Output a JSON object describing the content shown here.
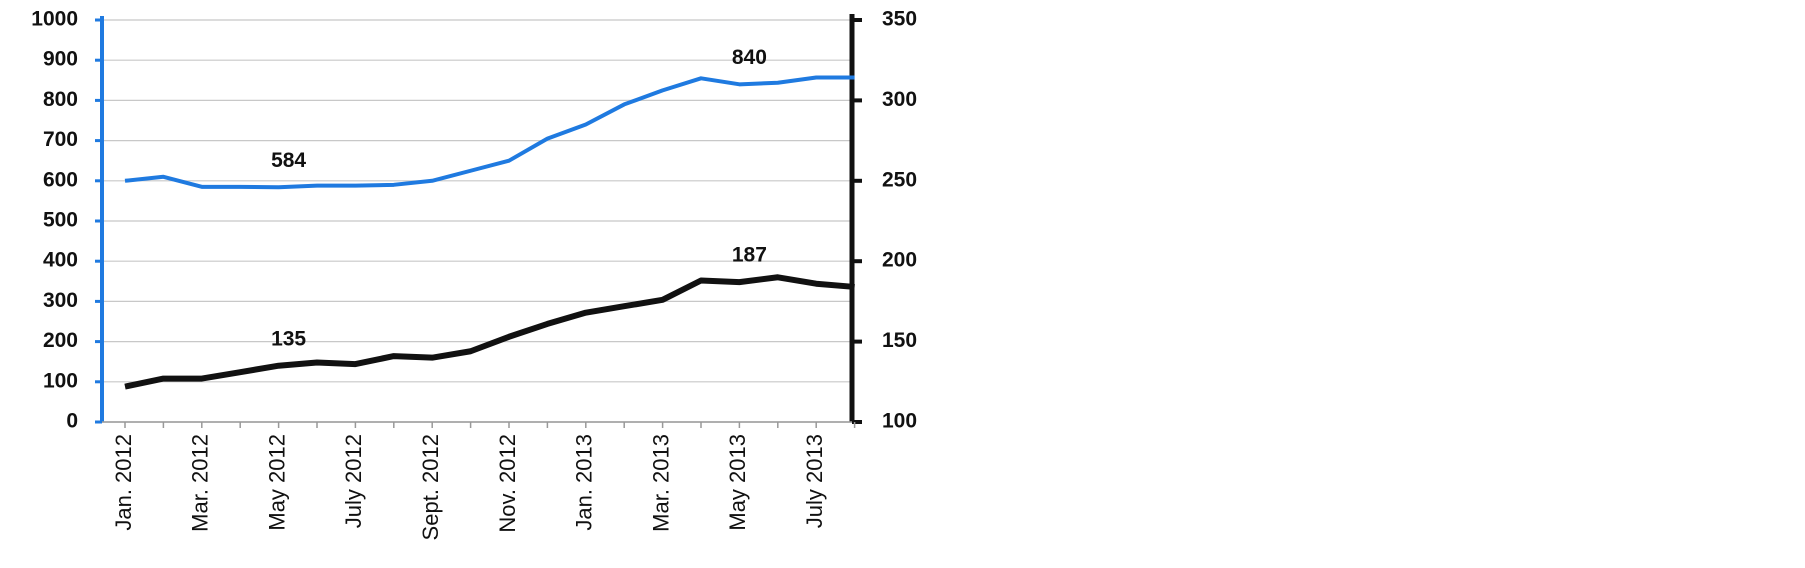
{
  "chart_data": {
    "type": "line",
    "categories": [
      "Jan. 2012",
      null,
      "Mar. 2012",
      null,
      "May 2012",
      null,
      "July 2012",
      null,
      "Sept. 2012",
      null,
      "Nov. 2012",
      null,
      "Jan. 2013",
      null,
      "Mar. 2013",
      null,
      "May 2013",
      null,
      "July 2013",
      null
    ],
    "series": [
      {
        "color": "#1f7ae0",
        "axis": "y",
        "data_labels": [
          4,
          16
        ],
        "values": [
          600,
          610,
          585,
          585,
          584,
          588,
          588,
          590,
          600,
          625,
          650,
          705,
          740,
          790,
          825,
          855,
          840,
          844,
          857,
          857
        ]
      },
      {
        "color": "#111111",
        "axis": "y2",
        "data_labels": [
          4,
          16
        ],
        "values": [
          122,
          127,
          127,
          131,
          135,
          137,
          136,
          141,
          140,
          144,
          153,
          161,
          168,
          172,
          176,
          188,
          187,
          190,
          186,
          184
        ]
      }
    ],
    "ylim": [
      0,
      1000
    ],
    "yticks": [
      0,
      100,
      200,
      300,
      400,
      500,
      600,
      700,
      800,
      900,
      1000
    ],
    "y2lim": [
      100,
      350
    ],
    "y2ticks": [
      100,
      150,
      200,
      250,
      300,
      350
    ],
    "grid": true,
    "y_axis_color": "#1f7ae0",
    "y2_axis_color": "#111111"
  }
}
